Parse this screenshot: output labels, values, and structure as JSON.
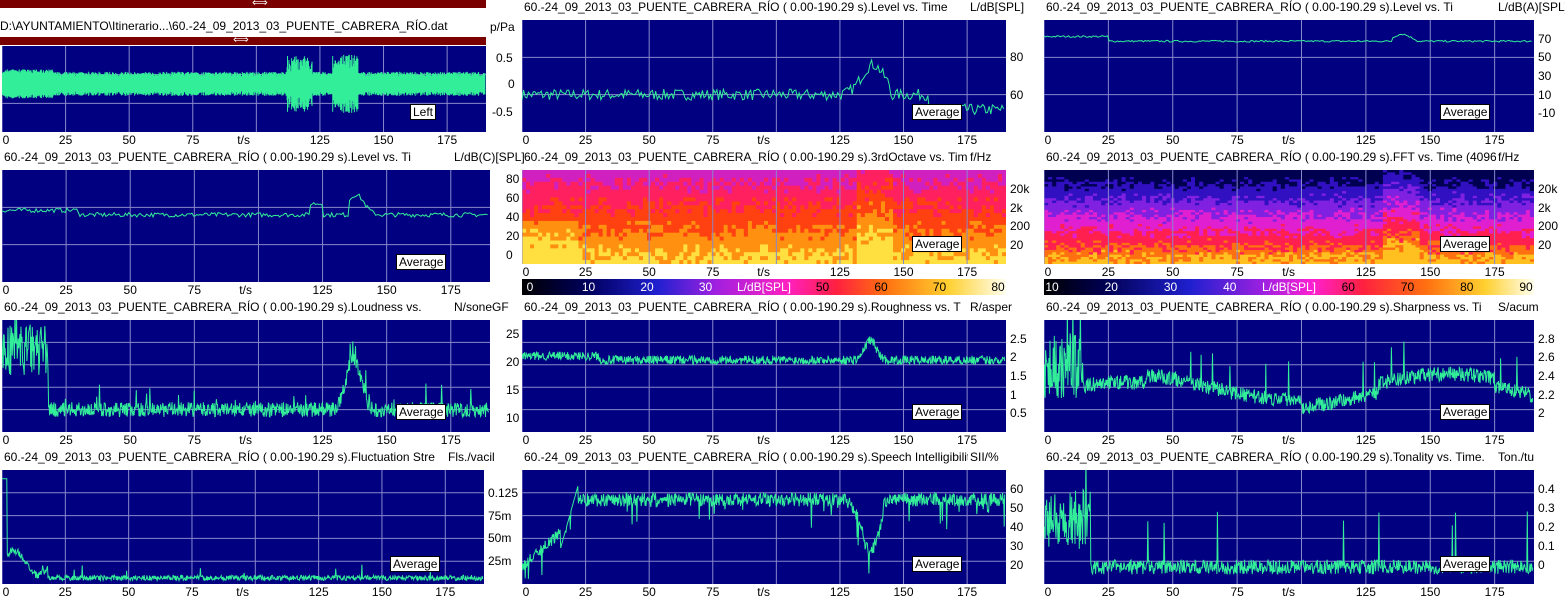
{
  "top": {
    "file_path": "D:\\AYUNTAMIENTO\\Itinerario...\\60.-24_09_2013_03_PUENTE_CABRERA_RÍO.dat",
    "unit": "p/Pa",
    "left_label": "Left",
    "x_ticks": [
      "0",
      "25",
      "50",
      "75",
      "t/s",
      "125",
      "150",
      "175"
    ],
    "y_ticks": [
      "0.5",
      "0",
      "-0.5"
    ],
    "arrow": "⟺"
  },
  "panes": [
    {
      "id": "level-z",
      "title": "60.-24_09_2013_03_PUENTE_CABRERA_RÍO ( 0.00-190.29 s).Level vs. Time",
      "unit": "L/dB[SPL]",
      "tag": "Average",
      "y_ticks": [
        "80",
        "60"
      ],
      "x_ticks": [
        "0",
        "25",
        "50",
        "75",
        "t/s",
        "125",
        "150",
        "175"
      ]
    },
    {
      "id": "level-a",
      "title": "60.-24_09_2013_03_PUENTE_CABRERA_RÍO ( 0.00-190.29 s).Level vs. Ti",
      "unit": "L/dB(A)[SPL]",
      "tag": "Average",
      "y_ticks": [
        "70",
        "50",
        "30",
        "10",
        "-10"
      ],
      "x_ticks": [
        "0",
        "25",
        "50",
        "75",
        "t/s",
        "125",
        "150",
        "175"
      ]
    },
    {
      "id": "level-c",
      "title": "60.-24_09_2013_03_PUENTE_CABRERA_RÍO ( 0.00-190.29 s).Level vs. Ti",
      "unit": "L/dB(C)[SPL]",
      "tag": "Average",
      "y_ticks": [],
      "x_ticks": [
        "0",
        "25",
        "50",
        "75",
        "t/s",
        "125",
        "150",
        "175"
      ]
    },
    {
      "id": "third-octave",
      "title": "60.-24_09_2013_03_PUENTE_CABRERA_RÍO ( 0.00-190.29 s).3rdOctave vs. Time (",
      "unit": "f/Hz",
      "tag": "Average",
      "y_ticks": [
        "20k",
        "2k",
        "200",
        "20"
      ],
      "left_ticks": [
        "80",
        "60",
        "40",
        "20",
        "0"
      ],
      "x_ticks": [
        "0",
        "25",
        "50",
        "75",
        "t/s",
        "125",
        "150",
        "175"
      ],
      "colorbar": [
        "0",
        "10",
        "20",
        "30",
        "L/dB[SPL]",
        "50",
        "60",
        "70",
        "80"
      ]
    },
    {
      "id": "fft",
      "title": "60.-24_09_2013_03_PUENTE_CABRERA_RÍO ( 0.00-190.29 s).FFT vs. Time (4096,!",
      "unit": "f/Hz",
      "tag": "Average",
      "y_ticks": [
        "20k",
        "2k",
        "200",
        "20"
      ],
      "x_ticks": [
        "0",
        "25",
        "50",
        "75",
        "t/s",
        "125",
        "150",
        "175"
      ],
      "colorbar": [
        "10",
        "20",
        "30",
        "40",
        "L/dB[SPL]",
        "60",
        "70",
        "80",
        "90"
      ]
    },
    {
      "id": "loudness",
      "title": "60.-24_09_2013_03_PUENTE_CABRERA_RÍO ( 0.00-190.29 s).Loudness vs.",
      "unit": "N/soneGF",
      "tag": "Average",
      "y_ticks": [],
      "x_ticks": [
        "0",
        "25",
        "50",
        "75",
        "t/s",
        "125",
        "150",
        "175"
      ]
    },
    {
      "id": "roughness",
      "title": "60.-24_09_2013_03_PUENTE_CABRERA_RÍO ( 0.00-190.29 s).Roughness vs. T",
      "unit": "R/asper",
      "tag": "Average",
      "y_ticks": [
        "2.5",
        "2",
        "1.5",
        "1",
        "0.5"
      ],
      "left_ticks": [
        "25",
        "20",
        "15",
        "10"
      ],
      "x_ticks": [
        "0",
        "25",
        "50",
        "75",
        "t/s",
        "125",
        "150",
        "175"
      ]
    },
    {
      "id": "sharpness",
      "title": "60.-24_09_2013_03_PUENTE_CABRERA_RÍO ( 0.00-190.29 s).Sharpness vs. Ti",
      "unit": "S/acum",
      "tag": "Average",
      "y_ticks": [
        "2.8",
        "2.6",
        "2.4",
        "2.2",
        "2"
      ],
      "x_ticks": [
        "0",
        "25",
        "50",
        "75",
        "t/s",
        "125",
        "150",
        "175"
      ]
    },
    {
      "id": "fluctuation",
      "title": "60.-24_09_2013_03_PUENTE_CABRERA_RÍO ( 0.00-190.29 s).Fluctuation Stre",
      "unit": "Fls./vacil",
      "tag": "Average",
      "y_ticks": [
        "0.125",
        "75m",
        "50m",
        "25m"
      ],
      "x_ticks": [
        "0",
        "25",
        "50",
        "75",
        "t/s",
        "125",
        "150",
        "175"
      ]
    },
    {
      "id": "speech",
      "title": "60.-24_09_2013_03_PUENTE_CABRERA_RÍO ( 0.00-190.29 s).Speech Intelligibilit",
      "unit": "SII/%",
      "tag": "Average",
      "y_ticks": [
        "60",
        "50",
        "40",
        "30",
        "20"
      ],
      "x_ticks": [
        "0",
        "25",
        "50",
        "75",
        "t/s",
        "125",
        "150",
        "175"
      ]
    },
    {
      "id": "tonality",
      "title": "60.-24_09_2013_03_PUENTE_CABRERA_RÍO ( 0.00-190.29 s).Tonality vs. Time.",
      "unit": "Ton./tu",
      "tag": "Average",
      "y_ticks": [
        "0.4",
        "0.3",
        "0.2",
        "0.1",
        "0"
      ],
      "x_ticks": [
        "0",
        "25",
        "50",
        "75",
        "t/s",
        "125",
        "150",
        "175"
      ]
    }
  ],
  "colors": {
    "plot_bg": "#000080",
    "trace": "#33ee99",
    "grid": "#8888cc",
    "scroll": "#7a0000"
  }
}
